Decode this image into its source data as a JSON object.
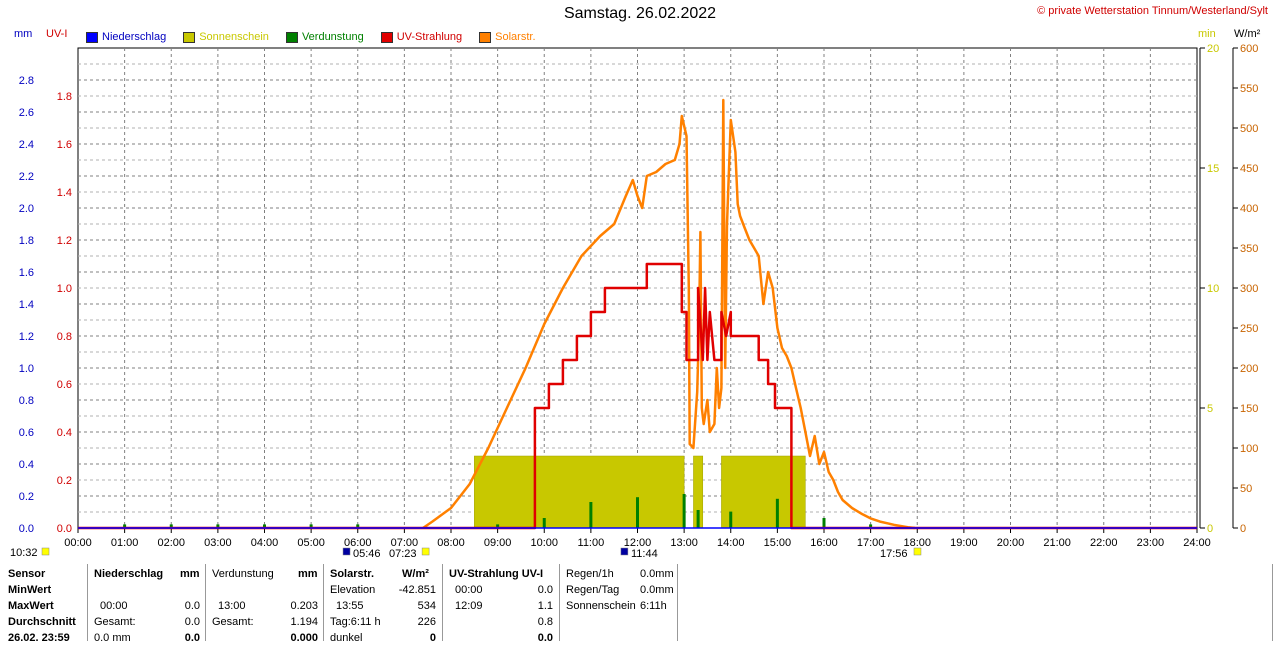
{
  "title": "Samstag. 26.02.2022",
  "credit": "© private Wetterstation Tinnum/Westerland/Sylt",
  "units": {
    "left1": "mm",
    "left2": "UV-I",
    "right1": "min",
    "right2": "W/m²"
  },
  "legend": [
    {
      "label": "Niederschlag",
      "color": "#0000ff"
    },
    {
      "label": "Sonnenschein",
      "color": "#c8c800"
    },
    {
      "label": "Verdunstung",
      "color": "#008000"
    },
    {
      "label": "UV-Strahlung",
      "color": "#e00000"
    },
    {
      "label": "Solarstr.",
      "color": "#ff8000"
    }
  ],
  "colors": {
    "mm_axis": "#0000c0",
    "uv_axis": "#d00000",
    "min_axis": "#c8c800",
    "solar_axis": "#c86400",
    "grid": "#808080"
  },
  "markers": {
    "t1": "10:32",
    "t2": "05:46",
    "t3": "07:23",
    "t4": "11:44",
    "t5": "17:56"
  },
  "chart_data": {
    "type": "line",
    "title": "Samstag. 26.02.2022",
    "x_ticks": [
      "00:00",
      "01:00",
      "02:00",
      "03:00",
      "04:00",
      "05:00",
      "06:00",
      "07:00",
      "08:00",
      "09:00",
      "10:00",
      "11:00",
      "12:00",
      "13:00",
      "14:00",
      "15:00",
      "16:00",
      "17:00",
      "18:00",
      "19:00",
      "20:00",
      "21:00",
      "22:00",
      "23:00",
      "24:00"
    ],
    "axes": {
      "mm": {
        "ticks": [
          "0.0",
          "0.2",
          "0.4",
          "0.6",
          "0.8",
          "1.0",
          "1.2",
          "1.4",
          "1.6",
          "1.8",
          "2.0",
          "2.2",
          "2.4",
          "2.6",
          "2.8"
        ],
        "range": [
          0,
          3.0
        ]
      },
      "uv": {
        "ticks": [
          "0.0",
          "0.2",
          "0.4",
          "0.6",
          "0.8",
          "1.0",
          "1.2",
          "1.4",
          "1.6",
          "1.8"
        ],
        "range": [
          0,
          2.0
        ]
      },
      "min": {
        "ticks": [
          "0",
          "5",
          "10",
          "15",
          "20"
        ],
        "range": [
          0,
          20
        ]
      },
      "solar": {
        "ticks": [
          "0",
          "50",
          "100",
          "150",
          "200",
          "250",
          "300",
          "350",
          "400",
          "450",
          "500",
          "550",
          "600"
        ],
        "range": [
          0,
          600
        ]
      }
    },
    "series": [
      {
        "name": "Solarstr.",
        "unit": "W/m²",
        "color": "#ff8000",
        "points": [
          [
            7.4,
            0
          ],
          [
            7.6,
            8
          ],
          [
            8.0,
            25
          ],
          [
            8.4,
            55
          ],
          [
            8.8,
            100
          ],
          [
            9.2,
            150
          ],
          [
            9.6,
            200
          ],
          [
            10.0,
            255
          ],
          [
            10.4,
            300
          ],
          [
            10.8,
            340
          ],
          [
            11.2,
            365
          ],
          [
            11.5,
            380
          ],
          [
            11.75,
            415
          ],
          [
            11.9,
            435
          ],
          [
            12.0,
            415
          ],
          [
            12.1,
            400
          ],
          [
            12.2,
            440
          ],
          [
            12.4,
            445
          ],
          [
            12.6,
            455
          ],
          [
            12.8,
            460
          ],
          [
            12.9,
            480
          ],
          [
            12.95,
            515
          ],
          [
            13.05,
            490
          ],
          [
            13.1,
            300
          ],
          [
            13.12,
            105
          ],
          [
            13.2,
            100
          ],
          [
            13.28,
            170
          ],
          [
            13.32,
            250
          ],
          [
            13.35,
            370
          ],
          [
            13.38,
            150
          ],
          [
            13.42,
            130
          ],
          [
            13.5,
            160
          ],
          [
            13.55,
            120
          ],
          [
            13.65,
            130
          ],
          [
            13.7,
            200
          ],
          [
            13.75,
            150
          ],
          [
            13.8,
            175
          ],
          [
            13.84,
            535
          ],
          [
            13.88,
            200
          ],
          [
            13.92,
            380
          ],
          [
            14.0,
            510
          ],
          [
            14.1,
            470
          ],
          [
            14.15,
            405
          ],
          [
            14.2,
            390
          ],
          [
            14.3,
            375
          ],
          [
            14.4,
            360
          ],
          [
            14.5,
            350
          ],
          [
            14.6,
            340
          ],
          [
            14.7,
            280
          ],
          [
            14.8,
            320
          ],
          [
            14.9,
            300
          ],
          [
            15.0,
            250
          ],
          [
            15.1,
            225
          ],
          [
            15.2,
            215
          ],
          [
            15.3,
            200
          ],
          [
            15.4,
            175
          ],
          [
            15.5,
            150
          ],
          [
            15.6,
            120
          ],
          [
            15.7,
            90
          ],
          [
            15.8,
            115
          ],
          [
            15.9,
            80
          ],
          [
            16.0,
            95
          ],
          [
            16.1,
            70
          ],
          [
            16.2,
            60
          ],
          [
            16.3,
            45
          ],
          [
            16.4,
            35
          ],
          [
            16.6,
            25
          ],
          [
            16.8,
            18
          ],
          [
            17.0,
            12
          ],
          [
            17.2,
            8
          ],
          [
            17.5,
            4
          ],
          [
            17.8,
            1
          ],
          [
            17.95,
            0
          ]
        ]
      },
      {
        "name": "UV-Strahlung",
        "unit": "UV-I",
        "color": "#e00000",
        "points": [
          [
            0,
            0
          ],
          [
            9.8,
            0
          ],
          [
            9.8,
            0.5
          ],
          [
            10.1,
            0.5
          ],
          [
            10.1,
            0.6
          ],
          [
            10.4,
            0.6
          ],
          [
            10.4,
            0.7
          ],
          [
            10.7,
            0.7
          ],
          [
            10.7,
            0.8
          ],
          [
            11.0,
            0.8
          ],
          [
            11.0,
            0.9
          ],
          [
            11.3,
            0.9
          ],
          [
            11.3,
            1.0
          ],
          [
            11.5,
            1.0
          ],
          [
            11.5,
            1.0
          ],
          [
            12.2,
            1.0
          ],
          [
            12.2,
            1.1
          ],
          [
            12.95,
            1.1
          ],
          [
            12.95,
            0.9
          ],
          [
            13.05,
            0.9
          ],
          [
            13.05,
            0.7
          ],
          [
            13.3,
            0.7
          ],
          [
            13.3,
            1.0
          ],
          [
            13.4,
            0.7
          ],
          [
            13.45,
            1.0
          ],
          [
            13.5,
            0.7
          ],
          [
            13.55,
            0.9
          ],
          [
            13.65,
            0.7
          ],
          [
            13.8,
            0.7
          ],
          [
            13.8,
            0.9
          ],
          [
            13.9,
            0.8
          ],
          [
            14.0,
            0.9
          ],
          [
            14.0,
            0.8
          ],
          [
            14.6,
            0.8
          ],
          [
            14.6,
            0.7
          ],
          [
            14.8,
            0.7
          ],
          [
            14.8,
            0.6
          ],
          [
            14.95,
            0.6
          ],
          [
            14.95,
            0.5
          ],
          [
            15.3,
            0.5
          ],
          [
            15.3,
            0
          ],
          [
            24,
            0
          ]
        ]
      },
      {
        "name": "Sonnenschein",
        "unit": "min",
        "color": "#c8c800",
        "bars": [
          [
            8.5,
            13.0,
            3
          ],
          [
            13.2,
            13.4,
            3
          ],
          [
            13.8,
            15.6,
            3
          ]
        ]
      },
      {
        "name": "Verdunstung",
        "unit": "mm",
        "color": "#008000",
        "spikes": [
          [
            1,
            0.01
          ],
          [
            2,
            0.01
          ],
          [
            3,
            0.01
          ],
          [
            4,
            0.01
          ],
          [
            5,
            0.01
          ],
          [
            6,
            0.01
          ],
          [
            9,
            0.01
          ],
          [
            10,
            0.05
          ],
          [
            11,
            0.15
          ],
          [
            12,
            0.18
          ],
          [
            13,
            0.2
          ],
          [
            13.3,
            0.1
          ],
          [
            14,
            0.09
          ],
          [
            15,
            0.17
          ],
          [
            16,
            0.05
          ],
          [
            17,
            0.01
          ]
        ]
      }
    ]
  },
  "panel": {
    "sensor": {
      "h": "Sensor",
      "rows": [
        "MinWert",
        "MaxWert",
        "Durchschnitt",
        "26.02. 23:59"
      ]
    },
    "nieder": {
      "h": "Niederschlag",
      "u": "mm",
      "max_t": "00:00",
      "max_v": "0.0",
      "ges_l": "Gesamt:",
      "ges_v": "0.0",
      "last_v": "0.0 mm",
      "last_v2": "0.0"
    },
    "verd": {
      "h": "Verdunstung",
      "u": "mm",
      "max_t": "13:00",
      "max_v": "0.203",
      "ges_l": "Gesamt:",
      "ges_v": "1.194",
      "last_v": "0.000"
    },
    "solar": {
      "h": "Solarstr.",
      "u": "W/m²",
      "r1l": "Elevation",
      "r1v": "-42.851",
      "r2l": "13:55",
      "r2v": "534",
      "r3l": "Tag:6:11 h",
      "r3v": "226",
      "r4l": "dunkel",
      "r4v": "0"
    },
    "uvp": {
      "h": "UV-Strahlung UV-I",
      "r1l": "00:00",
      "r1v": "0.0",
      "r2l": "12:09",
      "r2v": "1.1",
      "r3v": "0.8",
      "r4v": "0.0"
    },
    "rain": {
      "r1l": "Regen/1h",
      "r1v": "0.0mm",
      "r2l": "Regen/Tag",
      "r2v": "0.0mm",
      "r3l": "Sonnenschein",
      "r3v": "6:11h"
    }
  }
}
